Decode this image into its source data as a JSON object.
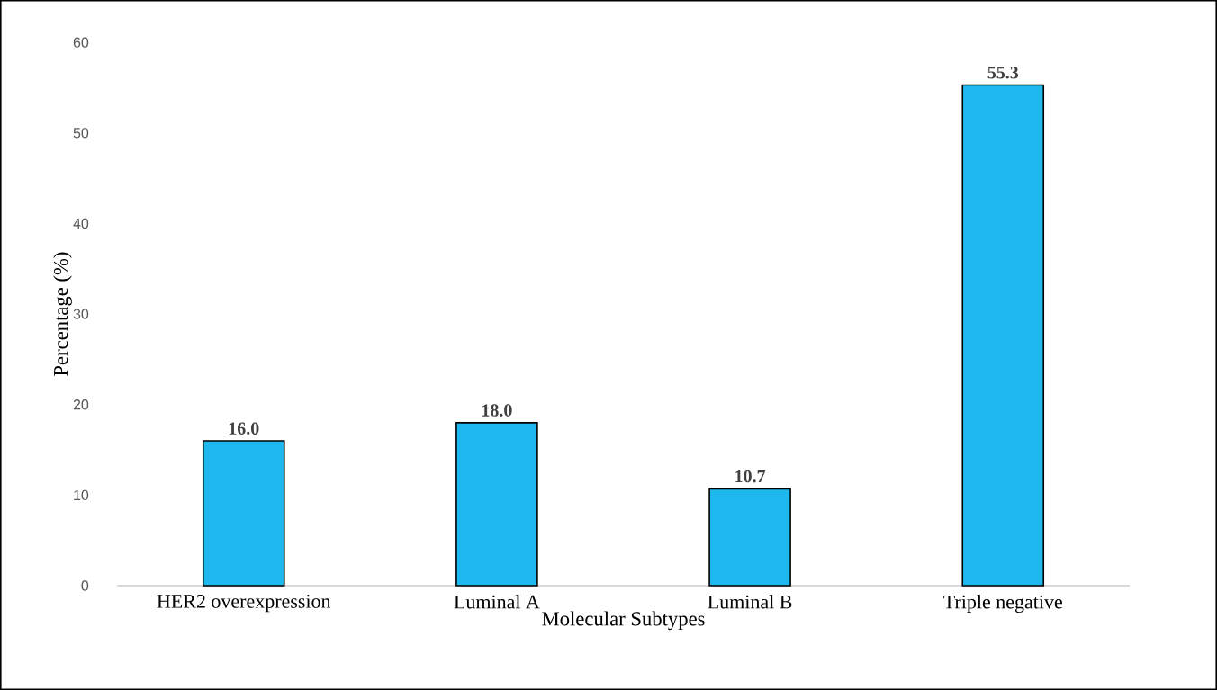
{
  "chart_data": {
    "type": "bar",
    "categories": [
      "HER2 overexpression",
      "Luminal A",
      "Luminal B",
      "Triple negative"
    ],
    "values": [
      16.0,
      18.0,
      10.7,
      55.3
    ],
    "value_labels": [
      "16.0",
      "18.0",
      "10.7",
      "55.3"
    ],
    "color": "#1eb8ef",
    "xlabel": "Molecular Subtypes",
    "ylabel": "Percentage (%)",
    "ylim": [
      0,
      60
    ],
    "yticks": [
      0,
      10,
      20,
      30,
      40,
      50,
      60
    ]
  }
}
